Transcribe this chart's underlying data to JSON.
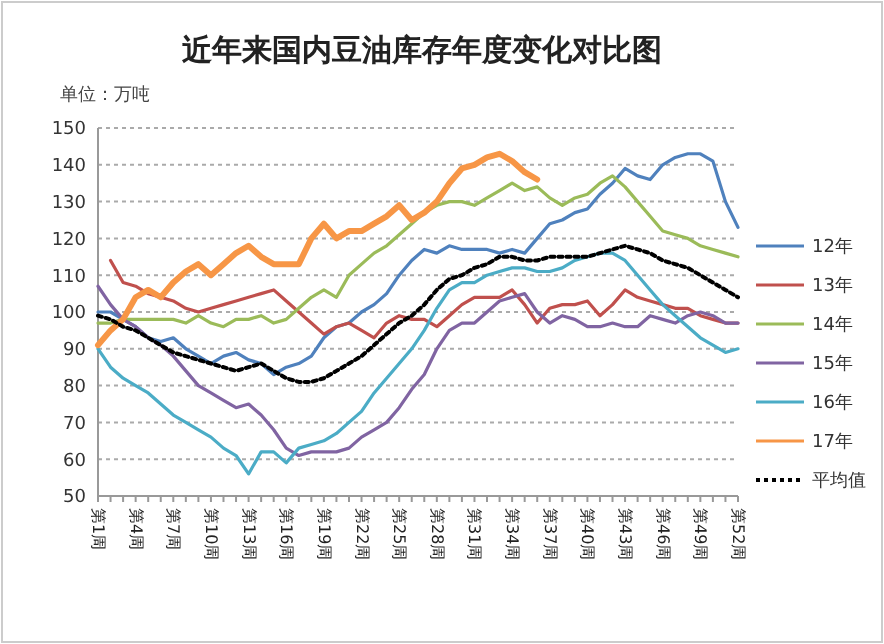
{
  "chart_data": {
    "type": "line",
    "title": "近年来国内豆油库存年度变化对比图",
    "annotations": [
      "单位：万吨"
    ],
    "categories": [
      "第1周",
      null,
      null,
      "第4周",
      null,
      null,
      "第7周",
      null,
      null,
      "第10周",
      null,
      null,
      "第13周",
      null,
      null,
      "第16周",
      null,
      null,
      "第19周",
      null,
      null,
      "第22周",
      null,
      null,
      "第25周",
      null,
      null,
      "第28周",
      null,
      null,
      "第31周",
      null,
      null,
      "第34周",
      null,
      null,
      "第37周",
      null,
      null,
      "第40周",
      null,
      null,
      "第43周",
      null,
      null,
      "第46周",
      null,
      null,
      "第49周",
      null,
      null,
      "第52周"
    ],
    "ylim": [
      50,
      150
    ],
    "yticks": [
      50,
      60,
      70,
      80,
      90,
      100,
      110,
      120,
      130,
      140,
      150
    ],
    "grid": "y",
    "legend": "right",
    "marker": "none",
    "series": [
      {
        "name": "12年",
        "color": "#4f81bd",
        "values": [
          100,
          100,
          98,
          96,
          93,
          92,
          93,
          90,
          88,
          86,
          88,
          89,
          87,
          86,
          83,
          85,
          86,
          88,
          93,
          96,
          97,
          100,
          102,
          105,
          110,
          114,
          117,
          116,
          118,
          117,
          117,
          117,
          116,
          117,
          116,
          120,
          124,
          125,
          127,
          128,
          132,
          135,
          139,
          137,
          136,
          140,
          142,
          143,
          143,
          141,
          130,
          123
        ]
      },
      {
        "name": "13年",
        "color": "#c0504d",
        "values": [
          null,
          114,
          108,
          107,
          105,
          104,
          103,
          101,
          100,
          101,
          102,
          103,
          104,
          105,
          106,
          103,
          100,
          97,
          94,
          96,
          97,
          95,
          93,
          97,
          99,
          98,
          98,
          96,
          99,
          102,
          104,
          104,
          104,
          106,
          102,
          97,
          101,
          102,
          102,
          103,
          99,
          102,
          106,
          104,
          103,
          102,
          101,
          101,
          99,
          98,
          97,
          97
        ]
      },
      {
        "name": "14年",
        "color": "#9bbb59",
        "values": [
          97,
          97,
          98,
          98,
          98,
          98,
          98,
          97,
          99,
          97,
          96,
          98,
          98,
          99,
          97,
          98,
          101,
          104,
          106,
          104,
          110,
          113,
          116,
          118,
          121,
          124,
          127,
          129,
          130,
          130,
          129,
          131,
          133,
          135,
          133,
          134,
          131,
          129,
          131,
          132,
          135,
          137,
          134,
          130,
          126,
          122,
          121,
          120,
          118,
          117,
          116,
          115
        ]
      },
      {
        "name": "15年",
        "color": "#8064a2",
        "values": [
          107,
          102,
          98,
          96,
          93,
          91,
          88,
          84,
          80,
          78,
          76,
          74,
          75,
          72,
          68,
          63,
          61,
          62,
          62,
          62,
          63,
          66,
          68,
          70,
          74,
          79,
          83,
          90,
          95,
          97,
          97,
          100,
          103,
          104,
          105,
          100,
          97,
          99,
          98,
          96,
          96,
          97,
          96,
          96,
          99,
          98,
          97,
          99,
          100,
          99,
          97,
          97
        ]
      },
      {
        "name": "16年",
        "color": "#4bacc6",
        "values": [
          90,
          85,
          82,
          80,
          78,
          75,
          72,
          70,
          68,
          66,
          63,
          61,
          56,
          62,
          62,
          59,
          63,
          64,
          65,
          67,
          70,
          73,
          78,
          82,
          86,
          90,
          95,
          101,
          106,
          108,
          108,
          110,
          111,
          112,
          112,
          111,
          111,
          112,
          114,
          115,
          116,
          116,
          114,
          110,
          106,
          102,
          99,
          96,
          93,
          91,
          89,
          90
        ]
      },
      {
        "name": "17年",
        "color": "#f79646",
        "values": [
          91,
          95,
          98,
          104,
          106,
          104,
          108,
          111,
          113,
          110,
          113,
          116,
          118,
          115,
          113,
          113,
          113,
          120,
          124,
          120,
          122,
          122,
          124,
          126,
          129,
          125,
          127,
          130,
          135,
          139,
          140,
          142,
          143,
          141,
          138,
          136,
          null,
          null,
          null,
          null,
          null,
          null,
          null,
          null,
          null,
          null,
          null,
          null,
          null,
          null,
          null,
          null
        ]
      },
      {
        "name": "平均值",
        "color": "#000000",
        "line_style": "dotted",
        "values": [
          99,
          98,
          96,
          95,
          93,
          91,
          89,
          88,
          87,
          86,
          85,
          84,
          85,
          86,
          84,
          82,
          81,
          81,
          82,
          84,
          86,
          88,
          91,
          94,
          97,
          99,
          102,
          106,
          109,
          110,
          112,
          113,
          115,
          115,
          114,
          114,
          115,
          115,
          115,
          115,
          116,
          117,
          118,
          117,
          116,
          114,
          113,
          112,
          110,
          108,
          106,
          104
        ]
      }
    ]
  }
}
